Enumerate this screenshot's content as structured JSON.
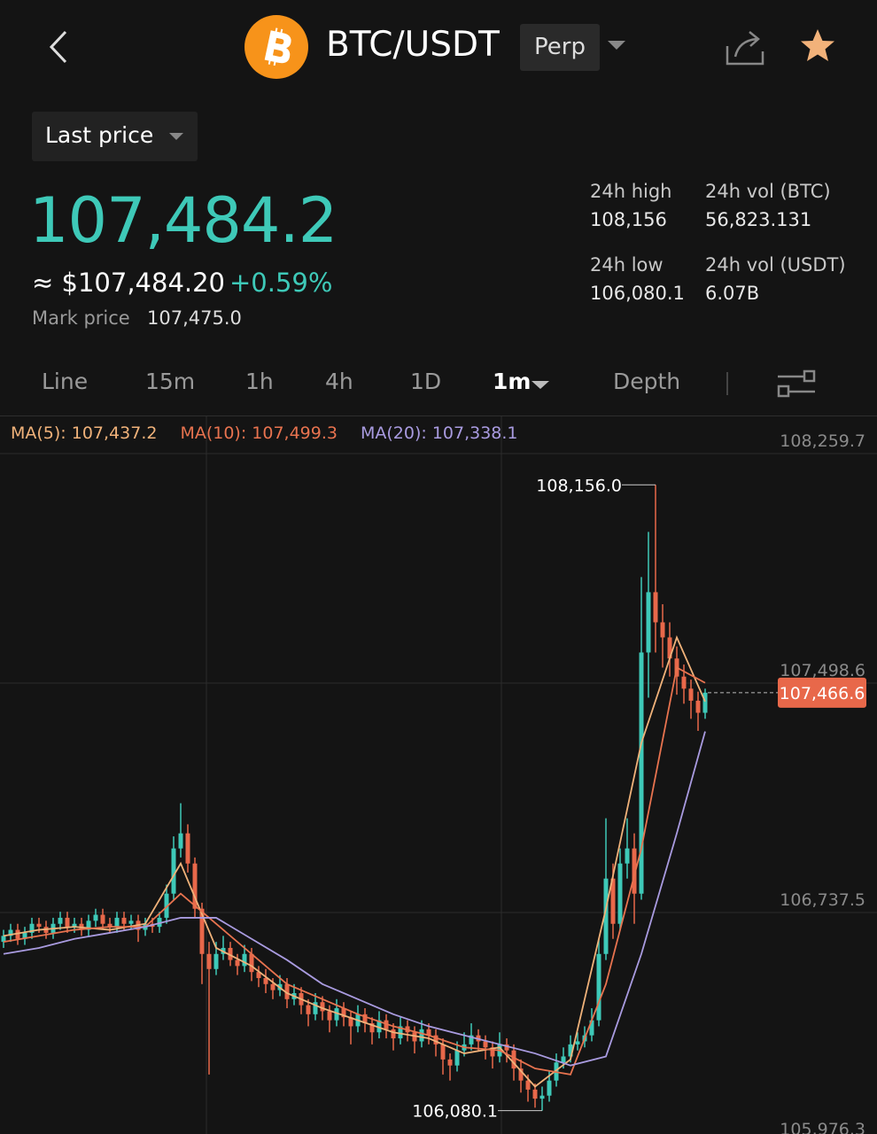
{
  "header": {
    "symbol": "BTC/USDT",
    "contract": "Perp"
  },
  "price_type": "Last price",
  "last_price": "107,484.2",
  "usd_price": "≈ $107,484.20",
  "change": "+0.59%",
  "mark_label": "Mark price",
  "mark_value": "107,475.0",
  "stats": [
    {
      "label": "24h high",
      "value": "108,156"
    },
    {
      "label": "24h vol (BTC)",
      "value": "56,823.131"
    },
    {
      "label": "24h low",
      "value": "106,080.1"
    },
    {
      "label": "24h vol (USDT)",
      "value": "6.07B"
    }
  ],
  "tabs": [
    "Line",
    "15m",
    "1h",
    "4h",
    "1D",
    "1m",
    "Depth"
  ],
  "chart_data": {
    "type": "candlestick",
    "up_color": "#3ec9b8",
    "down_color": "#e8684a",
    "ylim": [
      105976.3,
      108259.7
    ],
    "yticks": [
      {
        "value": 105976.3,
        "label": "105,976.3"
      },
      {
        "value": 106737.5,
        "label": "106,737.5"
      },
      {
        "value": 107498.6,
        "label": "107,498.6"
      },
      {
        "value": 108259.7,
        "label": "108,259.7"
      }
    ],
    "grid": true,
    "last": {
      "value": 107466.6,
      "label": "107,466.6"
    },
    "max_label": "108,156.0",
    "min_label": "106,080.1",
    "candles": [
      [
        106640,
        106680,
        106620,
        106660
      ],
      [
        106660,
        106700,
        106640,
        106680
      ],
      [
        106680,
        106700,
        106630,
        106650
      ],
      [
        106650,
        106690,
        106630,
        106670
      ],
      [
        106670,
        106720,
        106650,
        106700
      ],
      [
        106700,
        106720,
        106670,
        106690
      ],
      [
        106690,
        106710,
        106650,
        106670
      ],
      [
        106670,
        106720,
        106650,
        106700
      ],
      [
        106700,
        106740,
        106680,
        106720
      ],
      [
        106720,
        106740,
        106670,
        106690
      ],
      [
        106690,
        106720,
        106670,
        106700
      ],
      [
        106700,
        106720,
        106660,
        106680
      ],
      [
        106680,
        106730,
        106660,
        106710
      ],
      [
        106710,
        106750,
        106690,
        106730
      ],
      [
        106730,
        106750,
        106680,
        106700
      ],
      [
        106700,
        106720,
        106670,
        106690
      ],
      [
        106690,
        106740,
        106670,
        106720
      ],
      [
        106720,
        106740,
        106680,
        106700
      ],
      [
        106700,
        106730,
        106680,
        106710
      ],
      [
        106710,
        106730,
        106640,
        106680
      ],
      [
        106680,
        106720,
        106660,
        106700
      ],
      [
        106700,
        106720,
        106670,
        106690
      ],
      [
        106690,
        106740,
        106670,
        106720
      ],
      [
        106720,
        106830,
        106700,
        106800
      ],
      [
        106800,
        106990,
        106780,
        106950
      ],
      [
        106950,
        107100,
        106920,
        107000
      ],
      [
        107000,
        107030,
        106870,
        106900
      ],
      [
        106900,
        106920,
        106720,
        106750
      ],
      [
        106750,
        106770,
        106500,
        106600
      ],
      [
        106600,
        106640,
        106200,
        106550
      ],
      [
        106550,
        106640,
        106530,
        106600
      ],
      [
        106600,
        106660,
        106580,
        106620
      ],
      [
        106620,
        106640,
        106560,
        106580
      ],
      [
        106580,
        106600,
        106530,
        106560
      ],
      [
        106560,
        106630,
        106540,
        106600
      ],
      [
        106600,
        106620,
        106510,
        106540
      ],
      [
        106540,
        106560,
        106490,
        106520
      ],
      [
        106520,
        106550,
        106470,
        106500
      ],
      [
        106500,
        106520,
        106450,
        106480
      ],
      [
        106480,
        106530,
        106460,
        106500
      ],
      [
        106500,
        106520,
        106420,
        106450
      ],
      [
        106450,
        106500,
        106430,
        106470
      ],
      [
        106470,
        106490,
        106400,
        106430
      ],
      [
        106430,
        106450,
        106360,
        106400
      ],
      [
        106400,
        106470,
        106380,
        106440
      ],
      [
        106440,
        106460,
        106380,
        106410
      ],
      [
        106410,
        106430,
        106340,
        106380
      ],
      [
        106380,
        106450,
        106360,
        106420
      ],
      [
        106420,
        106440,
        106360,
        106390
      ],
      [
        106390,
        106410,
        106300,
        106360
      ],
      [
        106360,
        106430,
        106340,
        106400
      ],
      [
        106400,
        106420,
        106340,
        106370
      ],
      [
        106370,
        106390,
        106300,
        106340
      ],
      [
        106340,
        106410,
        106320,
        106380
      ],
      [
        106380,
        106400,
        106320,
        106350
      ],
      [
        106350,
        106370,
        106280,
        106320
      ],
      [
        106320,
        106390,
        106300,
        106360
      ],
      [
        106360,
        106380,
        106310,
        106340
      ],
      [
        106340,
        106360,
        106270,
        106310
      ],
      [
        106310,
        106380,
        106290,
        106350
      ],
      [
        106350,
        106370,
        106300,
        106330
      ],
      [
        106330,
        106350,
        106260,
        106300
      ],
      [
        106300,
        106320,
        106200,
        106250
      ],
      [
        106250,
        106270,
        106180,
        106230
      ],
      [
        106230,
        106310,
        106210,
        106280
      ],
      [
        106280,
        106340,
        106260,
        106300
      ],
      [
        106300,
        106370,
        106280,
        106330
      ],
      [
        106330,
        106350,
        106280,
        106310
      ],
      [
        106310,
        106330,
        106250,
        106290
      ],
      [
        106290,
        106310,
        106220,
        106260
      ],
      [
        106260,
        106340,
        106240,
        106300
      ],
      [
        106300,
        106320,
        106240,
        106280
      ],
      [
        106280,
        106300,
        106180,
        106220
      ],
      [
        106220,
        106250,
        106140,
        106180
      ],
      [
        106180,
        106200,
        106110,
        106150
      ],
      [
        106150,
        106170,
        106090,
        106120
      ],
      [
        106120,
        106160,
        106080.1,
        106130
      ],
      [
        106130,
        106210,
        106110,
        106180
      ],
      [
        106180,
        106270,
        106160,
        106240
      ],
      [
        106240,
        106290,
        106220,
        106260
      ],
      [
        106260,
        106330,
        106240,
        106300
      ],
      [
        106300,
        106340,
        106280,
        106310
      ],
      [
        106310,
        106360,
        106290,
        106330
      ],
      [
        106330,
        106420,
        106310,
        106380
      ],
      [
        106380,
        106650,
        106360,
        106600
      ],
      [
        106600,
        107050,
        106580,
        106850
      ],
      [
        106850,
        106900,
        106650,
        106700
      ],
      [
        106700,
        106950,
        106680,
        106900
      ],
      [
        106900,
        107050,
        106850,
        106950
      ],
      [
        106950,
        107000,
        106700,
        106800
      ],
      [
        106800,
        107850,
        106780,
        107600
      ],
      [
        107600,
        108000,
        107450,
        107800
      ],
      [
        107800,
        108156,
        107600,
        107700
      ],
      [
        107700,
        107760,
        107550,
        107650
      ],
      [
        107650,
        107700,
        107520,
        107580
      ],
      [
        107580,
        107620,
        107460,
        107520
      ],
      [
        107520,
        107560,
        107430,
        107480
      ],
      [
        107480,
        107510,
        107380,
        107440
      ],
      [
        107440,
        107470,
        107340,
        107400
      ],
      [
        107400,
        107480,
        107380,
        107466.6
      ]
    ],
    "ma_x": [
      0,
      5,
      10,
      15,
      20,
      25,
      30,
      35,
      40,
      45,
      50,
      55,
      60,
      65,
      70,
      75,
      80,
      85,
      90,
      95,
      99
    ],
    "series": [
      {
        "name": "MA(5): 107,437.2",
        "color": "#f0b27a",
        "values": [
          106660,
          106680,
          106690,
          106680,
          106700,
          106900,
          106620,
          106560,
          106470,
          106420,
          106380,
          106340,
          106320,
          106270,
          106290,
          106160,
          106250,
          106750,
          107300,
          107650,
          107437.2
        ]
      },
      {
        "name": "MA(10): 107,499.3",
        "color": "#e8734f",
        "values": [
          106640,
          106660,
          106680,
          106690,
          106690,
          106800,
          106700,
          106600,
          106500,
          106450,
          106400,
          106360,
          106330,
          106290,
          106280,
          106220,
          106200,
          106500,
          106950,
          107550,
          107499.3
        ]
      },
      {
        "name": "MA(20): 107,338.1",
        "color": "#a99be0",
        "values": [
          106600,
          106620,
          106650,
          106670,
          106690,
          106720,
          106720,
          106650,
          106580,
          106500,
          106450,
          106400,
          106360,
          106330,
          106300,
          106270,
          106230,
          106260,
          106600,
          107000,
          107338.1
        ]
      }
    ]
  }
}
